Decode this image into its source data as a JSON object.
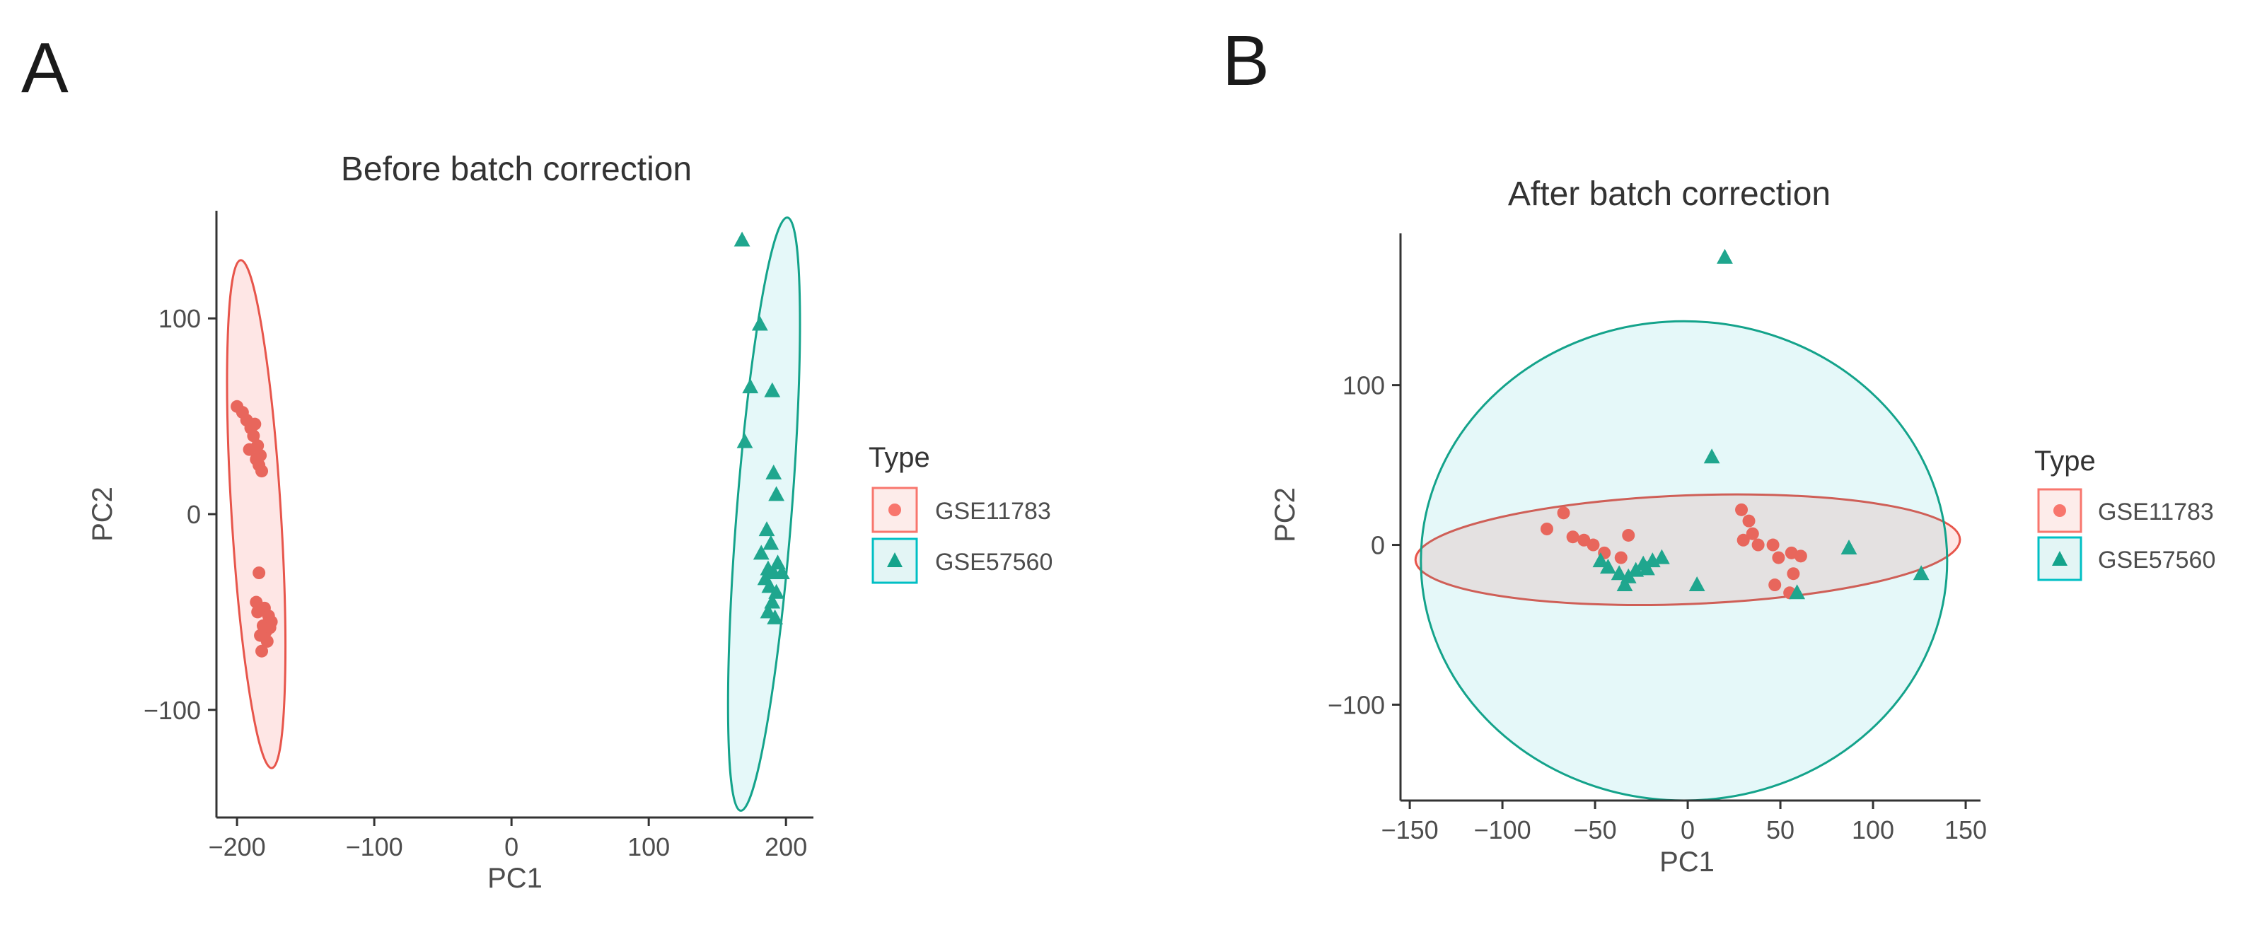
{
  "colors": {
    "red": "#F8766D",
    "teal": "#00BFC4",
    "red_dark": "#E7554B",
    "teal_dark": "#14A38B"
  },
  "chart_data": [
    {
      "panel": "A",
      "type": "scatter",
      "title": "Before batch correction",
      "xlabel": "PC1",
      "ylabel": "PC2",
      "xlim": [
        -215,
        220
      ],
      "ylim": [
        -155,
        155
      ],
      "xticks": [
        -200,
        -100,
        0,
        100,
        200
      ],
      "yticks": [
        -100,
        0,
        100
      ],
      "grid": false,
      "legend": {
        "title": "Type",
        "position": "right",
        "entries": [
          "GSE11783",
          "GSE57560"
        ]
      },
      "series": [
        {
          "name": "GSE11783",
          "shape": "circle",
          "color": "#F8766D",
          "points": [
            [
              -200,
              55
            ],
            [
              -196,
              52
            ],
            [
              -193,
              48
            ],
            [
              -190,
              44
            ],
            [
              -188,
              40
            ],
            [
              -185,
              35
            ],
            [
              -183,
              30
            ],
            [
              -186,
              28
            ],
            [
              -191,
              33
            ],
            [
              -184,
              25
            ],
            [
              -182,
              22
            ],
            [
              -187,
              46
            ],
            [
              -184,
              -30
            ],
            [
              -186,
              -45
            ],
            [
              -180,
              -48
            ],
            [
              -177,
              -52
            ],
            [
              -175,
              -55
            ],
            [
              -181,
              -57
            ],
            [
              -179,
              -60
            ],
            [
              -183,
              -62
            ],
            [
              -178,
              -65
            ],
            [
              -182,
              -70
            ],
            [
              -176,
              -58
            ],
            [
              -185,
              -50
            ]
          ]
        },
        {
          "name": "GSE57560",
          "shape": "triangle",
          "color": "#00BFC4",
          "points": [
            [
              168,
              140
            ],
            [
              181,
              97
            ],
            [
              174,
              65
            ],
            [
              190,
              63
            ],
            [
              170,
              37
            ],
            [
              191,
              21
            ],
            [
              193,
              10
            ],
            [
              186,
              -8
            ],
            [
              189,
              -15
            ],
            [
              182,
              -20
            ],
            [
              194,
              -25
            ],
            [
              187,
              -28
            ],
            [
              191,
              -30
            ],
            [
              197,
              -30
            ],
            [
              185,
              -33
            ],
            [
              188,
              -37
            ],
            [
              193,
              -40
            ],
            [
              190,
              -45
            ],
            [
              187,
              -50
            ],
            [
              192,
              -53
            ]
          ]
        }
      ],
      "ellipses": [
        {
          "series": "GSE11783",
          "cx": -186,
          "cy": 0,
          "rx": 18,
          "ry": 130,
          "angle": -3.5
        },
        {
          "series": "GSE57560",
          "cx": 184,
          "cy": 0,
          "rx": 20,
          "ry": 152,
          "angle": 4.5
        }
      ]
    },
    {
      "panel": "B",
      "type": "scatter",
      "title": "After batch correction",
      "xlabel": "PC1",
      "ylabel": "PC2",
      "xlim": [
        -155,
        158
      ],
      "ylim": [
        -160,
        195
      ],
      "xticks": [
        -150,
        -100,
        -50,
        0,
        50,
        100,
        150
      ],
      "yticks": [
        -100,
        0,
        100
      ],
      "grid": false,
      "legend": {
        "title": "Type",
        "position": "right",
        "entries": [
          "GSE11783",
          "GSE57560"
        ]
      },
      "series": [
        {
          "name": "GSE11783",
          "shape": "circle",
          "color": "#F8766D",
          "points": [
            [
              -76,
              10
            ],
            [
              -67,
              20
            ],
            [
              -62,
              5
            ],
            [
              -56,
              3
            ],
            [
              -51,
              0
            ],
            [
              -45,
              -5
            ],
            [
              -32,
              6
            ],
            [
              -36,
              -8
            ],
            [
              29,
              22
            ],
            [
              33,
              15
            ],
            [
              35,
              7
            ],
            [
              30,
              3
            ],
            [
              38,
              0
            ],
            [
              46,
              0
            ],
            [
              49,
              -8
            ],
            [
              56,
              -5
            ],
            [
              61,
              -7
            ],
            [
              57,
              -18
            ],
            [
              47,
              -25
            ],
            [
              55,
              -30
            ]
          ]
        },
        {
          "name": "GSE57560",
          "shape": "triangle",
          "color": "#00BFC4",
          "points": [
            [
              20,
              180
            ],
            [
              13,
              55
            ],
            [
              -47,
              -10
            ],
            [
              -43,
              -14
            ],
            [
              -37,
              -18
            ],
            [
              -32,
              -20
            ],
            [
              -28,
              -16
            ],
            [
              -24,
              -12
            ],
            [
              -19,
              -10
            ],
            [
              -14,
              -8
            ],
            [
              -22,
              -15
            ],
            [
              -34,
              -25
            ],
            [
              5,
              -25
            ],
            [
              59,
              -30
            ],
            [
              87,
              -2
            ],
            [
              126,
              -18
            ]
          ]
        }
      ],
      "ellipses": [
        {
          "series": "GSE11783",
          "cx": 0,
          "cy": -3,
          "rx": 147,
          "ry": 34,
          "angle": -2.2
        },
        {
          "series": "GSE57560",
          "cx": -2,
          "cy": -10,
          "rx": 142,
          "ry": 150,
          "angle": 0
        }
      ]
    }
  ]
}
